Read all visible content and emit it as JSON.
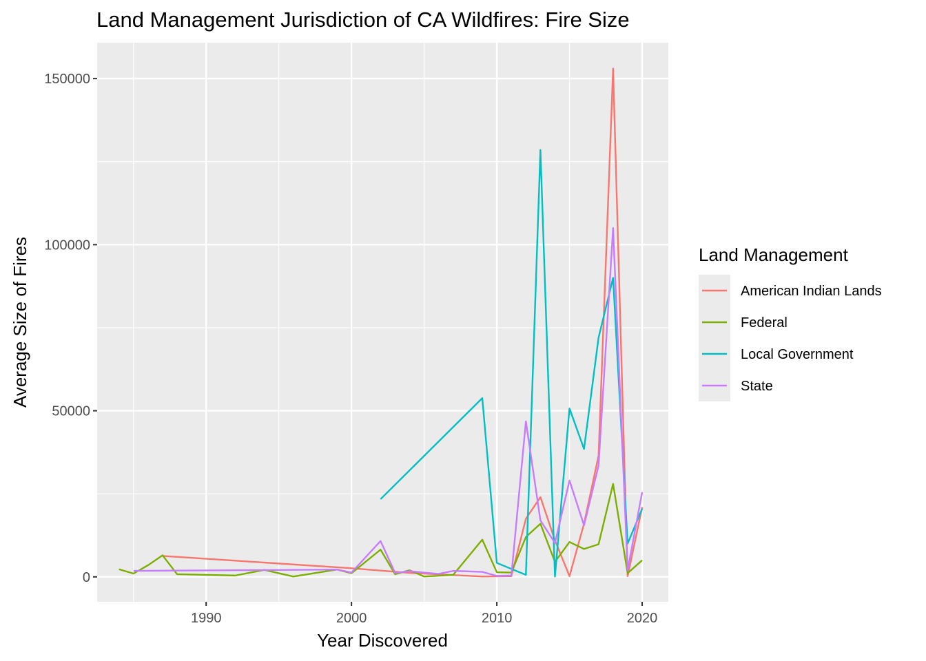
{
  "chart_data": {
    "type": "line",
    "title": "Land Management Jurisdiction of CA Wildfires: Fire Size",
    "xlabel": "Year Discovered",
    "ylabel": "Average Size of Fires",
    "xlim": [
      1982.5,
      2021.8
    ],
    "ylim": [
      -7500,
      160800
    ],
    "x_ticks": [
      1990,
      2000,
      2010,
      2020
    ],
    "x_minor_ticks": [
      1985,
      1995,
      2005,
      2015
    ],
    "y_ticks": [
      0,
      50000,
      100000,
      150000
    ],
    "y_minor_ticks": [
      25000,
      75000,
      125000
    ],
    "grid": true,
    "legend": {
      "title": "Land Management",
      "position": "right"
    },
    "series": [
      {
        "name": "American Indian Lands",
        "color": "#F8766D",
        "points": [
          [
            1987,
            6300
          ],
          [
            2000,
            2600
          ],
          [
            2004,
            1200
          ],
          [
            2009,
            100
          ],
          [
            2011,
            200
          ],
          [
            2012,
            17500
          ],
          [
            2013,
            24000
          ],
          [
            2014,
            11000
          ],
          [
            2015,
            200
          ],
          [
            2016,
            16000
          ],
          [
            2017,
            36500
          ],
          [
            2018,
            153000
          ],
          [
            2019,
            200
          ],
          [
            2020,
            21000
          ]
        ]
      },
      {
        "name": "Federal",
        "color": "#7CAE00",
        "points": [
          [
            1984,
            2300
          ],
          [
            1985,
            1000
          ],
          [
            1986,
            3500
          ],
          [
            1987,
            6500
          ],
          [
            1988,
            800
          ],
          [
            1992,
            400
          ],
          [
            1994,
            2100
          ],
          [
            1996,
            100
          ],
          [
            1999,
            2200
          ],
          [
            2000,
            1100
          ],
          [
            2002,
            8200
          ],
          [
            2003,
            800
          ],
          [
            2004,
            2000
          ],
          [
            2005,
            100
          ],
          [
            2007,
            600
          ],
          [
            2009,
            11200
          ],
          [
            2010,
            1400
          ],
          [
            2011,
            1300
          ],
          [
            2012,
            12000
          ],
          [
            2013,
            16000
          ],
          [
            2014,
            4500
          ],
          [
            2015,
            10500
          ],
          [
            2016,
            8400
          ],
          [
            2017,
            9800
          ],
          [
            2018,
            28000
          ],
          [
            2019,
            1100
          ],
          [
            2020,
            5000
          ]
        ]
      },
      {
        "name": "Local Government",
        "color": "#00BFC4",
        "points": [
          [
            2002,
            23400
          ],
          [
            2009,
            53800
          ],
          [
            2010,
            4200
          ],
          [
            2012,
            600
          ],
          [
            2013,
            128500
          ],
          [
            2014,
            100
          ],
          [
            2015,
            50700
          ],
          [
            2016,
            38500
          ],
          [
            2017,
            72000
          ],
          [
            2018,
            90000
          ],
          [
            2019,
            10000
          ],
          [
            2020,
            20500
          ]
        ]
      },
      {
        "name": "State",
        "color": "#C77CFF",
        "points": [
          [
            1985,
            1800
          ],
          [
            1999,
            2200
          ],
          [
            2000,
            1300
          ],
          [
            2002,
            10800
          ],
          [
            2003,
            1200
          ],
          [
            2004,
            1700
          ],
          [
            2006,
            900
          ],
          [
            2007,
            1800
          ],
          [
            2009,
            1500
          ],
          [
            2010,
            300
          ],
          [
            2011,
            400
          ],
          [
            2012,
            46800
          ],
          [
            2013,
            17000
          ],
          [
            2014,
            10200
          ],
          [
            2015,
            29000
          ],
          [
            2016,
            15500
          ],
          [
            2017,
            33500
          ],
          [
            2018,
            105000
          ],
          [
            2019,
            2000
          ],
          [
            2020,
            25500
          ]
        ]
      }
    ]
  }
}
